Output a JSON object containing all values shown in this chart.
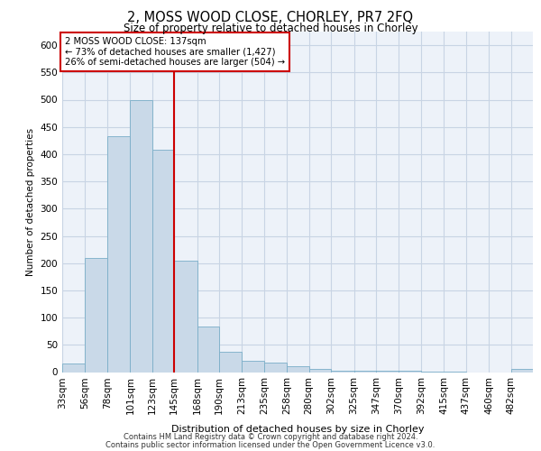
{
  "title": "2, MOSS WOOD CLOSE, CHORLEY, PR7 2FQ",
  "subtitle": "Size of property relative to detached houses in Chorley",
  "xlabel": "Distribution of detached houses by size in Chorley",
  "ylabel": "Number of detached properties",
  "footnote1": "Contains HM Land Registry data © Crown copyright and database right 2024.",
  "footnote2": "Contains public sector information licensed under the Open Government Licence v3.0.",
  "property_label": "2 MOSS WOOD CLOSE: 137sqm",
  "annotation_line1": "← 73% of detached houses are smaller (1,427)",
  "annotation_line2": "26% of semi-detached houses are larger (504) →",
  "bar_color": "#c9d9e8",
  "bar_edge_color": "#7aaec8",
  "vline_color": "#cc0000",
  "annotation_box_color": "#cc0000",
  "grid_color": "#c8d4e4",
  "bg_color": "#edf2f9",
  "bins": [
    33,
    56,
    78,
    101,
    123,
    145,
    168,
    190,
    213,
    235,
    258,
    280,
    302,
    325,
    347,
    370,
    392,
    415,
    437,
    460,
    482
  ],
  "bin_labels": [
    "33sqm",
    "56sqm",
    "78sqm",
    "101sqm",
    "123sqm",
    "145sqm",
    "168sqm",
    "190sqm",
    "213sqm",
    "235sqm",
    "258sqm",
    "280sqm",
    "302sqm",
    "325sqm",
    "347sqm",
    "370sqm",
    "392sqm",
    "415sqm",
    "437sqm",
    "460sqm",
    "482sqm"
  ],
  "counts": [
    15,
    210,
    433,
    500,
    408,
    205,
    83,
    37,
    20,
    17,
    11,
    5,
    2,
    2,
    2,
    2,
    1,
    1,
    0,
    0,
    5
  ],
  "vline_x": 145,
  "ylim": [
    0,
    625
  ],
  "yticks": [
    0,
    50,
    100,
    150,
    200,
    250,
    300,
    350,
    400,
    450,
    500,
    550,
    600
  ]
}
